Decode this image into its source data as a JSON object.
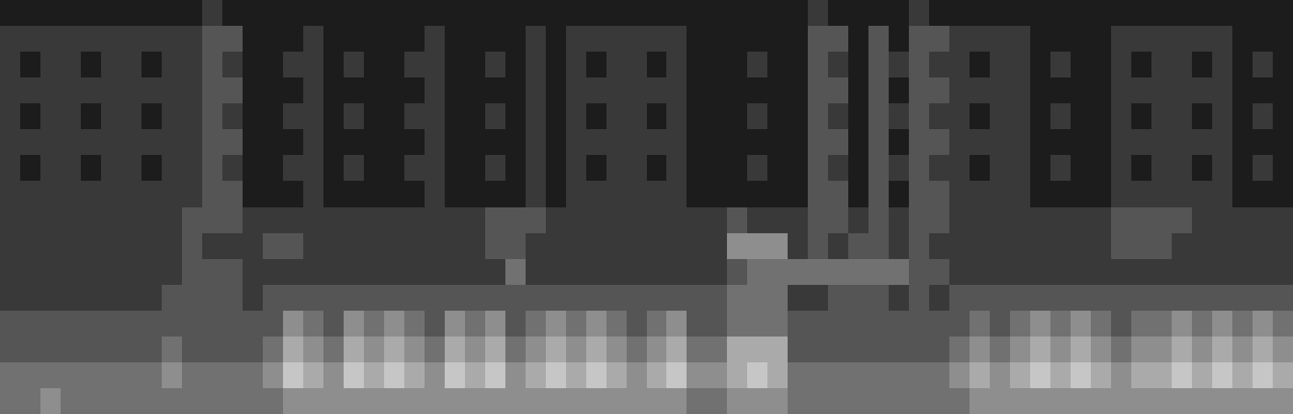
{
  "chart_data": {
    "type": "heatmap",
    "tick_labels": false,
    "grid": false,
    "zlim": [
      0,
      9
    ],
    "z": [
      [
        1,
        1,
        1,
        1,
        1,
        1,
        1,
        1,
        1,
        1,
        2,
        1,
        1,
        1,
        1,
        1,
        1,
        1,
        1,
        1,
        1,
        1,
        1,
        1,
        1,
        1,
        1,
        1,
        1,
        1,
        1,
        1,
        1,
        1,
        1,
        1,
        1,
        1,
        1,
        1,
        2,
        1,
        1,
        1,
        1,
        2,
        1,
        1,
        1,
        1,
        1,
        1,
        1,
        1,
        1,
        1,
        1,
        1,
        1,
        1,
        1,
        1,
        1,
        1
      ],
      [
        2,
        2,
        2,
        2,
        2,
        2,
        2,
        2,
        2,
        2,
        3,
        3,
        1,
        1,
        1,
        2,
        1,
        1,
        1,
        1,
        1,
        2,
        1,
        1,
        1,
        1,
        2,
        1,
        2,
        2,
        2,
        2,
        2,
        2,
        1,
        1,
        1,
        1,
        1,
        1,
        3,
        3,
        1,
        3,
        1,
        3,
        3,
        2,
        2,
        2,
        2,
        1,
        1,
        1,
        1,
        2,
        2,
        2,
        2,
        2,
        2,
        1,
        1,
        1
      ],
      [
        2,
        1,
        2,
        2,
        1,
        2,
        2,
        1,
        2,
        2,
        3,
        2,
        1,
        1,
        2,
        2,
        1,
        2,
        1,
        1,
        2,
        2,
        1,
        1,
        2,
        1,
        2,
        1,
        2,
        1,
        2,
        2,
        1,
        2,
        1,
        1,
        1,
        2,
        1,
        1,
        3,
        2,
        1,
        3,
        2,
        3,
        2,
        2,
        1,
        2,
        2,
        1,
        2,
        1,
        1,
        2,
        1,
        2,
        2,
        1,
        2,
        1,
        2,
        1
      ],
      [
        2,
        2,
        2,
        2,
        2,
        2,
        2,
        2,
        2,
        2,
        3,
        3,
        1,
        1,
        1,
        2,
        1,
        1,
        1,
        1,
        1,
        2,
        1,
        1,
        1,
        1,
        2,
        1,
        2,
        2,
        2,
        2,
        2,
        2,
        1,
        1,
        1,
        1,
        1,
        1,
        3,
        3,
        1,
        3,
        1,
        3,
        3,
        2,
        2,
        2,
        2,
        1,
        1,
        1,
        1,
        2,
        2,
        2,
        2,
        2,
        2,
        1,
        1,
        1
      ],
      [
        2,
        1,
        2,
        2,
        1,
        2,
        2,
        1,
        2,
        2,
        3,
        2,
        1,
        1,
        2,
        2,
        1,
        2,
        1,
        1,
        2,
        2,
        1,
        1,
        2,
        1,
        2,
        1,
        2,
        1,
        2,
        2,
        1,
        2,
        1,
        1,
        1,
        2,
        1,
        1,
        3,
        2,
        1,
        3,
        2,
        3,
        2,
        2,
        1,
        2,
        2,
        1,
        2,
        1,
        1,
        2,
        1,
        2,
        2,
        1,
        2,
        1,
        2,
        1
      ],
      [
        2,
        2,
        2,
        2,
        2,
        2,
        2,
        2,
        2,
        2,
        3,
        3,
        1,
        1,
        1,
        2,
        1,
        1,
        1,
        1,
        1,
        2,
        1,
        1,
        1,
        1,
        2,
        1,
        2,
        2,
        2,
        2,
        2,
        2,
        1,
        1,
        1,
        1,
        1,
        1,
        3,
        3,
        1,
        3,
        1,
        3,
        3,
        2,
        2,
        2,
        2,
        1,
        1,
        1,
        1,
        2,
        2,
        2,
        2,
        2,
        2,
        1,
        1,
        1
      ],
      [
        2,
        1,
        2,
        2,
        1,
        2,
        2,
        1,
        2,
        2,
        3,
        2,
        1,
        1,
        2,
        2,
        1,
        2,
        1,
        1,
        2,
        2,
        1,
        1,
        2,
        1,
        2,
        1,
        2,
        1,
        2,
        2,
        1,
        2,
        1,
        1,
        1,
        2,
        1,
        1,
        3,
        2,
        1,
        3,
        2,
        3,
        2,
        2,
        1,
        2,
        2,
        1,
        2,
        1,
        1,
        2,
        1,
        2,
        2,
        1,
        2,
        1,
        2,
        1
      ],
      [
        2,
        2,
        2,
        2,
        2,
        2,
        2,
        2,
        2,
        2,
        3,
        3,
        1,
        1,
        1,
        2,
        1,
        1,
        1,
        1,
        1,
        2,
        1,
        1,
        1,
        1,
        2,
        1,
        2,
        2,
        2,
        2,
        2,
        2,
        1,
        1,
        1,
        1,
        1,
        1,
        3,
        3,
        1,
        3,
        1,
        3,
        3,
        2,
        2,
        2,
        2,
        1,
        1,
        1,
        1,
        2,
        2,
        2,
        2,
        2,
        2,
        1,
        1,
        1
      ],
      [
        2,
        2,
        2,
        2,
        2,
        2,
        2,
        2,
        2,
        3,
        3,
        3,
        2,
        2,
        2,
        2,
        2,
        2,
        2,
        2,
        2,
        2,
        2,
        2,
        3,
        3,
        3,
        2,
        2,
        2,
        2,
        2,
        2,
        2,
        2,
        2,
        3,
        2,
        2,
        2,
        3,
        3,
        2,
        3,
        2,
        3,
        3,
        2,
        2,
        2,
        2,
        2,
        2,
        2,
        2,
        3,
        3,
        3,
        3,
        2,
        2,
        2,
        2,
        2
      ],
      [
        2,
        2,
        2,
        2,
        2,
        2,
        2,
        2,
        2,
        3,
        2,
        2,
        2,
        3,
        3,
        2,
        2,
        2,
        2,
        2,
        2,
        2,
        2,
        2,
        3,
        3,
        2,
        2,
        2,
        2,
        2,
        2,
        2,
        2,
        2,
        2,
        5,
        5,
        5,
        2,
        3,
        2,
        3,
        3,
        2,
        3,
        2,
        2,
        2,
        2,
        2,
        2,
        2,
        2,
        2,
        3,
        3,
        3,
        2,
        2,
        2,
        2,
        2,
        2
      ],
      [
        2,
        2,
        2,
        2,
        2,
        2,
        2,
        2,
        2,
        3,
        3,
        3,
        2,
        2,
        2,
        2,
        2,
        2,
        2,
        2,
        2,
        2,
        2,
        2,
        2,
        4,
        2,
        2,
        2,
        2,
        2,
        2,
        2,
        2,
        2,
        2,
        3,
        4,
        4,
        4,
        4,
        4,
        4,
        4,
        4,
        3,
        3,
        2,
        2,
        2,
        2,
        2,
        2,
        2,
        2,
        2,
        2,
        2,
        2,
        2,
        2,
        2,
        2,
        2
      ],
      [
        2,
        2,
        2,
        2,
        2,
        2,
        2,
        2,
        3,
        3,
        3,
        3,
        2,
        3,
        3,
        3,
        3,
        3,
        3,
        3,
        3,
        3,
        3,
        3,
        3,
        3,
        3,
        3,
        3,
        3,
        3,
        3,
        3,
        3,
        3,
        3,
        4,
        4,
        4,
        2,
        2,
        3,
        3,
        3,
        2,
        3,
        2,
        3,
        3,
        3,
        3,
        3,
        3,
        3,
        3,
        3,
        3,
        3,
        3,
        3,
        3,
        3,
        3,
        3
      ],
      [
        3,
        3,
        3,
        3,
        3,
        3,
        3,
        3,
        3,
        3,
        3,
        3,
        3,
        3,
        5,
        4,
        3,
        5,
        4,
        5,
        4,
        3,
        5,
        4,
        5,
        3,
        4,
        5,
        4,
        5,
        4,
        3,
        4,
        5,
        3,
        3,
        4,
        4,
        4,
        3,
        3,
        3,
        3,
        3,
        3,
        3,
        3,
        3,
        4,
        3,
        4,
        5,
        4,
        5,
        4,
        3,
        4,
        4,
        5,
        4,
        5,
        4,
        5,
        4
      ],
      [
        3,
        3,
        3,
        3,
        3,
        3,
        3,
        3,
        4,
        3,
        3,
        3,
        3,
        4,
        6,
        5,
        4,
        6,
        5,
        6,
        5,
        4,
        6,
        5,
        6,
        4,
        5,
        6,
        5,
        6,
        5,
        4,
        5,
        6,
        4,
        4,
        6,
        6,
        6,
        3,
        3,
        3,
        3,
        3,
        3,
        3,
        3,
        4,
        5,
        4,
        5,
        6,
        5,
        6,
        5,
        4,
        5,
        5,
        6,
        5,
        6,
        5,
        6,
        5
      ],
      [
        4,
        4,
        4,
        4,
        4,
        4,
        4,
        4,
        5,
        4,
        4,
        4,
        4,
        5,
        7,
        6,
        5,
        7,
        6,
        7,
        6,
        5,
        7,
        6,
        7,
        5,
        6,
        7,
        6,
        7,
        6,
        5,
        6,
        7,
        5,
        5,
        6,
        7,
        6,
        4,
        4,
        4,
        4,
        4,
        4,
        4,
        4,
        5,
        6,
        5,
        6,
        7,
        6,
        7,
        6,
        5,
        6,
        6,
        7,
        6,
        7,
        6,
        7,
        6
      ],
      [
        4,
        4,
        5,
        4,
        4,
        4,
        4,
        4,
        4,
        4,
        4,
        4,
        4,
        4,
        5,
        5,
        5,
        5,
        5,
        5,
        5,
        5,
        5,
        5,
        5,
        5,
        5,
        5,
        5,
        5,
        5,
        5,
        5,
        5,
        4,
        4,
        5,
        5,
        5,
        4,
        4,
        4,
        4,
        4,
        4,
        4,
        4,
        4,
        5,
        5,
        5,
        5,
        5,
        5,
        5,
        5,
        5,
        5,
        5,
        5,
        5,
        5,
        5,
        5
      ]
    ]
  }
}
